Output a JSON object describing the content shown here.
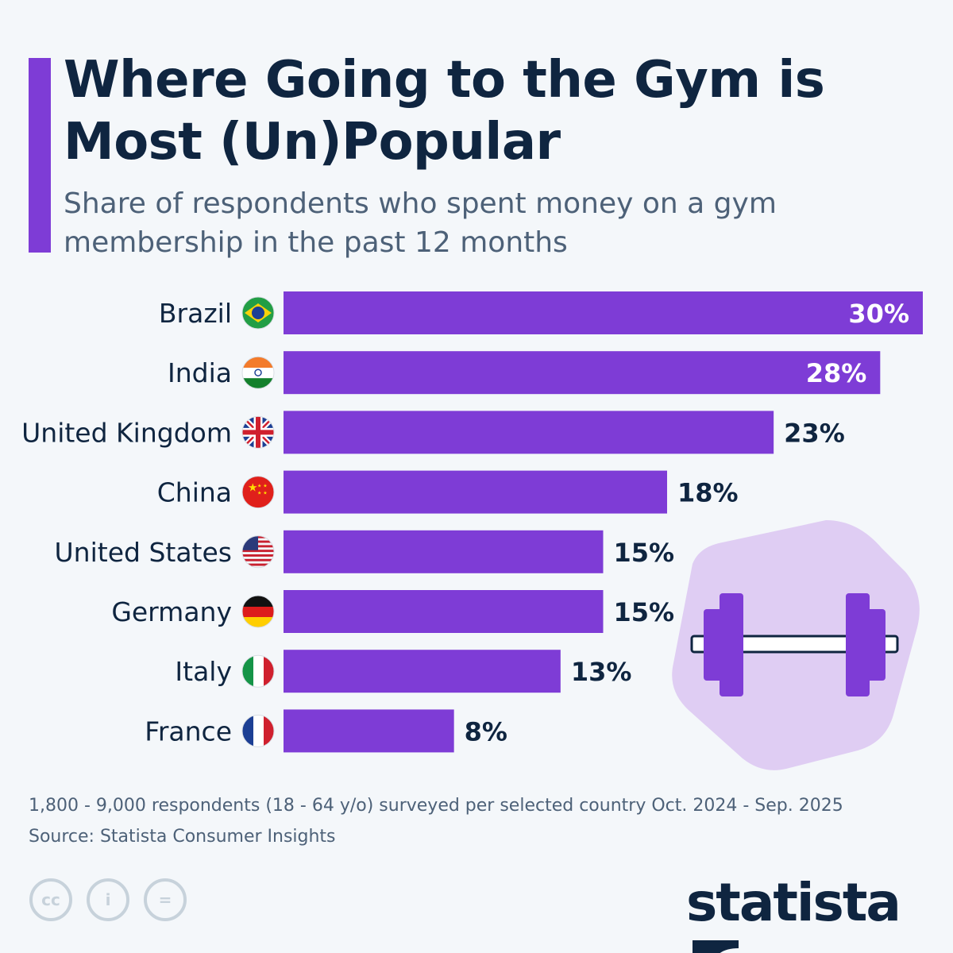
{
  "header": {
    "title": "Where Going to the Gym is Most (Un)Popular",
    "subtitle": "Share of respondents who spent money on a gym membership in the past 12 months"
  },
  "chart_data": {
    "type": "bar",
    "orientation": "horizontal",
    "categories": [
      "Brazil",
      "India",
      "United Kingdom",
      "China",
      "United States",
      "Germany",
      "Italy",
      "France"
    ],
    "values": [
      30,
      28,
      23,
      18,
      15,
      15,
      13,
      8
    ],
    "labels": [
      "30%",
      "28%",
      "23%",
      "18%",
      "15%",
      "15%",
      "13%",
      "8%"
    ],
    "unit": "%",
    "bar_color": "#7e3cd6",
    "xlim": [
      0,
      30
    ],
    "grid": false,
    "icons": [
      "flag-brazil",
      "flag-india",
      "flag-uk",
      "flag-china",
      "flag-usa",
      "flag-germany",
      "flag-italy",
      "flag-france",
      "dumbbell"
    ]
  },
  "footer": {
    "note": "1,800 - 9,000 respondents (18 - 64 y/o) surveyed per selected country Oct. 2024 - Sep. 2025",
    "source": "Source: Statista Consumer Insights",
    "cc_label": "cc",
    "eq_label": "=",
    "logo": "statista"
  }
}
